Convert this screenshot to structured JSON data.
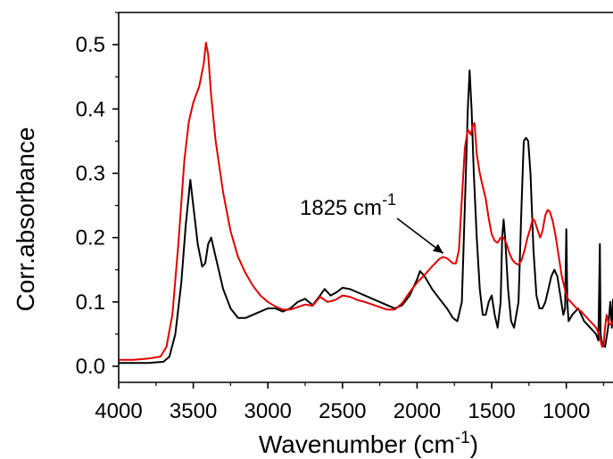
{
  "chart_data": {
    "type": "line",
    "title": "",
    "xlabel": "Wavenumber (cm",
    "xlabel_sup": "-1",
    "xlabel_close": ")",
    "ylabel": "Corr.absorbance",
    "xlim": [
      4000,
      687
    ],
    "ylim": [
      -0.025,
      0.55
    ],
    "x_reversed": true,
    "grid": false,
    "legend": "none",
    "x_ticks": [
      4000,
      3500,
      3000,
      2500,
      2000,
      1500,
      1000
    ],
    "y_ticks": [
      0.0,
      0.1,
      0.2,
      0.3,
      0.4,
      0.5
    ],
    "y_tick_labels": [
      "0.0",
      "0.1",
      "0.2",
      "0.3",
      "0.4",
      "0.5"
    ],
    "annotation": {
      "text": "1825 cm",
      "sup": "-1",
      "x": 1825,
      "y": 0.17
    },
    "series": [
      {
        "color": "#000000",
        "points": [
          [
            4000,
            0.005
          ],
          [
            3900,
            0.005
          ],
          [
            3800,
            0.005
          ],
          [
            3700,
            0.007
          ],
          [
            3660,
            0.015
          ],
          [
            3620,
            0.05
          ],
          [
            3580,
            0.13
          ],
          [
            3550,
            0.22
          ],
          [
            3520,
            0.29
          ],
          [
            3500,
            0.25
          ],
          [
            3470,
            0.19
          ],
          [
            3440,
            0.155
          ],
          [
            3420,
            0.16
          ],
          [
            3400,
            0.19
          ],
          [
            3380,
            0.2
          ],
          [
            3350,
            0.17
          ],
          [
            3300,
            0.12
          ],
          [
            3250,
            0.09
          ],
          [
            3200,
            0.075
          ],
          [
            3150,
            0.075
          ],
          [
            3100,
            0.08
          ],
          [
            3050,
            0.085
          ],
          [
            3000,
            0.09
          ],
          [
            2950,
            0.09
          ],
          [
            2900,
            0.085
          ],
          [
            2850,
            0.09
          ],
          [
            2800,
            0.1
          ],
          [
            2750,
            0.105
          ],
          [
            2700,
            0.095
          ],
          [
            2650,
            0.11
          ],
          [
            2620,
            0.12
          ],
          [
            2580,
            0.11
          ],
          [
            2540,
            0.115
          ],
          [
            2500,
            0.122
          ],
          [
            2450,
            0.12
          ],
          [
            2400,
            0.115
          ],
          [
            2350,
            0.11
          ],
          [
            2300,
            0.105
          ],
          [
            2250,
            0.1
          ],
          [
            2200,
            0.095
          ],
          [
            2150,
            0.09
          ],
          [
            2100,
            0.095
          ],
          [
            2050,
            0.11
          ],
          [
            2000,
            0.135
          ],
          [
            1980,
            0.148
          ],
          [
            1950,
            0.14
          ],
          [
            1900,
            0.12
          ],
          [
            1850,
            0.105
          ],
          [
            1800,
            0.09
          ],
          [
            1760,
            0.075
          ],
          [
            1730,
            0.07
          ],
          [
            1700,
            0.1
          ],
          [
            1680,
            0.25
          ],
          [
            1660,
            0.4
          ],
          [
            1648,
            0.46
          ],
          [
            1635,
            0.4
          ],
          [
            1620,
            0.3
          ],
          [
            1600,
            0.2
          ],
          [
            1580,
            0.12
          ],
          [
            1560,
            0.08
          ],
          [
            1540,
            0.08
          ],
          [
            1520,
            0.1
          ],
          [
            1500,
            0.11
          ],
          [
            1480,
            0.08
          ],
          [
            1460,
            0.06
          ],
          [
            1440,
            0.1
          ],
          [
            1430,
            0.2
          ],
          [
            1420,
            0.228
          ],
          [
            1410,
            0.2
          ],
          [
            1390,
            0.12
          ],
          [
            1370,
            0.07
          ],
          [
            1350,
            0.06
          ],
          [
            1320,
            0.1
          ],
          [
            1300,
            0.25
          ],
          [
            1285,
            0.35
          ],
          [
            1270,
            0.355
          ],
          [
            1255,
            0.35
          ],
          [
            1240,
            0.3
          ],
          [
            1220,
            0.18
          ],
          [
            1200,
            0.11
          ],
          [
            1180,
            0.09
          ],
          [
            1160,
            0.09
          ],
          [
            1140,
            0.1
          ],
          [
            1120,
            0.12
          ],
          [
            1100,
            0.14
          ],
          [
            1080,
            0.15
          ],
          [
            1060,
            0.14
          ],
          [
            1040,
            0.11
          ],
          [
            1020,
            0.08
          ],
          [
            1008,
            0.09
          ],
          [
            1000,
            0.213
          ],
          [
            993,
            0.1
          ],
          [
            985,
            0.07
          ],
          [
            960,
            0.08
          ],
          [
            940,
            0.085
          ],
          [
            920,
            0.09
          ],
          [
            900,
            0.08
          ],
          [
            880,
            0.07
          ],
          [
            860,
            0.065
          ],
          [
            840,
            0.06
          ],
          [
            820,
            0.055
          ],
          [
            800,
            0.05
          ],
          [
            785,
            0.04
          ],
          [
            775,
            0.19
          ],
          [
            770,
            0.05
          ],
          [
            760,
            0.035
          ],
          [
            740,
            0.03
          ],
          [
            720,
            0.06
          ],
          [
            705,
            0.1
          ],
          [
            695,
            0.06
          ],
          [
            687,
            0.105
          ]
        ]
      },
      {
        "color": "#e00000",
        "points": [
          [
            4000,
            0.01
          ],
          [
            3900,
            0.01
          ],
          [
            3800,
            0.012
          ],
          [
            3720,
            0.015
          ],
          [
            3680,
            0.03
          ],
          [
            3640,
            0.08
          ],
          [
            3600,
            0.19
          ],
          [
            3560,
            0.32
          ],
          [
            3530,
            0.38
          ],
          [
            3500,
            0.41
          ],
          [
            3460,
            0.435
          ],
          [
            3430,
            0.47
          ],
          [
            3415,
            0.503
          ],
          [
            3400,
            0.485
          ],
          [
            3380,
            0.42
          ],
          [
            3350,
            0.35
          ],
          [
            3300,
            0.27
          ],
          [
            3250,
            0.21
          ],
          [
            3200,
            0.17
          ],
          [
            3150,
            0.145
          ],
          [
            3100,
            0.125
          ],
          [
            3050,
            0.11
          ],
          [
            3000,
            0.1
          ],
          [
            2950,
            0.093
          ],
          [
            2900,
            0.088
          ],
          [
            2850,
            0.088
          ],
          [
            2800,
            0.092
          ],
          [
            2750,
            0.096
          ],
          [
            2700,
            0.094
          ],
          [
            2650,
            0.108
          ],
          [
            2600,
            0.1
          ],
          [
            2550,
            0.103
          ],
          [
            2500,
            0.11
          ],
          [
            2450,
            0.108
          ],
          [
            2400,
            0.103
          ],
          [
            2350,
            0.1
          ],
          [
            2300,
            0.096
          ],
          [
            2250,
            0.092
          ],
          [
            2200,
            0.088
          ],
          [
            2150,
            0.088
          ],
          [
            2100,
            0.098
          ],
          [
            2050,
            0.115
          ],
          [
            2000,
            0.13
          ],
          [
            1950,
            0.142
          ],
          [
            1900,
            0.155
          ],
          [
            1850,
            0.167
          ],
          [
            1825,
            0.17
          ],
          [
            1800,
            0.168
          ],
          [
            1760,
            0.16
          ],
          [
            1740,
            0.16
          ],
          [
            1720,
            0.18
          ],
          [
            1700,
            0.26
          ],
          [
            1680,
            0.34
          ],
          [
            1660,
            0.368
          ],
          [
            1640,
            0.36
          ],
          [
            1625,
            0.375
          ],
          [
            1615,
            0.378
          ],
          [
            1600,
            0.33
          ],
          [
            1580,
            0.3
          ],
          [
            1560,
            0.28
          ],
          [
            1540,
            0.26
          ],
          [
            1520,
            0.23
          ],
          [
            1500,
            0.205
          ],
          [
            1480,
            0.195
          ],
          [
            1460,
            0.192
          ],
          [
            1440,
            0.2
          ],
          [
            1420,
            0.2
          ],
          [
            1400,
            0.19
          ],
          [
            1380,
            0.175
          ],
          [
            1360,
            0.165
          ],
          [
            1340,
            0.16
          ],
          [
            1320,
            0.158
          ],
          [
            1300,
            0.165
          ],
          [
            1280,
            0.18
          ],
          [
            1260,
            0.2
          ],
          [
            1240,
            0.215
          ],
          [
            1225,
            0.23
          ],
          [
            1210,
            0.225
          ],
          [
            1190,
            0.21
          ],
          [
            1175,
            0.2
          ],
          [
            1160,
            0.21
          ],
          [
            1140,
            0.235
          ],
          [
            1125,
            0.243
          ],
          [
            1110,
            0.24
          ],
          [
            1090,
            0.225
          ],
          [
            1070,
            0.2
          ],
          [
            1050,
            0.17
          ],
          [
            1030,
            0.14
          ],
          [
            1010,
            0.12
          ],
          [
            990,
            0.105
          ],
          [
            970,
            0.1
          ],
          [
            950,
            0.095
          ],
          [
            930,
            0.09
          ],
          [
            900,
            0.085
          ],
          [
            880,
            0.08
          ],
          [
            860,
            0.075
          ],
          [
            840,
            0.07
          ],
          [
            820,
            0.065
          ],
          [
            800,
            0.06
          ],
          [
            780,
            0.05
          ],
          [
            760,
            0.03
          ],
          [
            750,
            0.035
          ],
          [
            740,
            0.06
          ],
          [
            730,
            0.08
          ],
          [
            720,
            0.07
          ],
          [
            710,
            0.065
          ],
          [
            700,
            0.065
          ],
          [
            687,
            0.07
          ]
        ]
      }
    ]
  }
}
